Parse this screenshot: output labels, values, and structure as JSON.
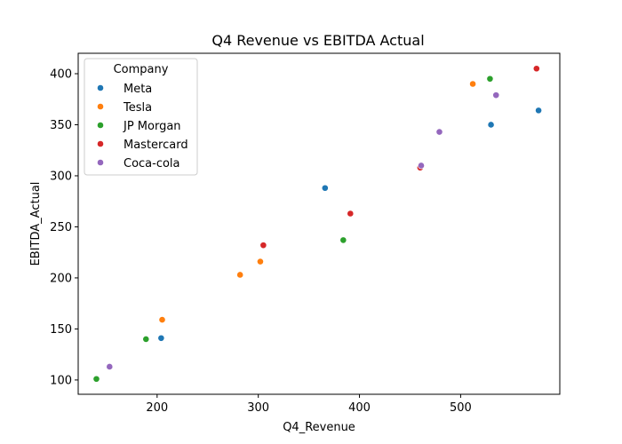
{
  "chart_data": {
    "type": "scatter",
    "title": "Q4 Revenue vs EBITDA Actual",
    "xlabel": "Q4_Revenue",
    "ylabel": "EBITDA_Actual",
    "xlim": [
      122,
      598
    ],
    "ylim": [
      86,
      420
    ],
    "xticks": [
      200,
      300,
      400,
      500
    ],
    "yticks": [
      100,
      150,
      200,
      250,
      300,
      350,
      400
    ],
    "grid": false,
    "legend": {
      "title": "Company",
      "placement": "top-left"
    },
    "series": [
      {
        "name": "Meta",
        "color": "#1f77b4",
        "points": [
          [
            204,
            141
          ],
          [
            366,
            288
          ],
          [
            530,
            350
          ],
          [
            577,
            364
          ]
        ]
      },
      {
        "name": "Tesla",
        "color": "#ff7f0e",
        "points": [
          [
            205,
            159
          ],
          [
            282,
            203
          ],
          [
            302,
            216
          ],
          [
            512,
            390
          ]
        ]
      },
      {
        "name": "JP Morgan",
        "color": "#2ca02c",
        "points": [
          [
            140,
            101
          ],
          [
            189,
            140
          ],
          [
            384,
            237
          ],
          [
            529,
            395
          ]
        ]
      },
      {
        "name": "Mastercard",
        "color": "#d62728",
        "points": [
          [
            305,
            232
          ],
          [
            391,
            263
          ],
          [
            460,
            308
          ],
          [
            575,
            405
          ]
        ]
      },
      {
        "name": "Coca-cola",
        "color": "#9467bd",
        "points": [
          [
            153,
            113
          ],
          [
            461,
            310
          ],
          [
            479,
            343
          ],
          [
            535,
            379
          ]
        ]
      }
    ]
  }
}
